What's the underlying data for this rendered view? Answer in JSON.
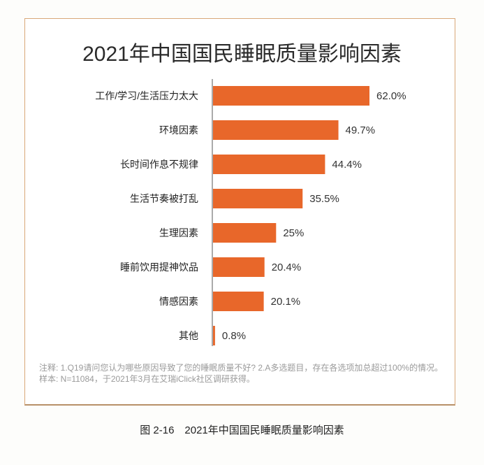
{
  "chart_data": {
    "type": "bar",
    "orientation": "horizontal",
    "title": "2021年中国国民睡眠质量影响因素",
    "categories": [
      "工作/学习/生活压力太大",
      "环境因素",
      "长时间作息不规律",
      "生活节奏被打乱",
      "生理因素",
      "睡前饮用提神饮品",
      "情感因素",
      "其他"
    ],
    "values": [
      62.0,
      49.7,
      44.4,
      35.5,
      25,
      20.4,
      20.1,
      0.8
    ],
    "value_labels": [
      "62.0%",
      "49.7%",
      "44.4%",
      "35.5%",
      "25%",
      "20.4%",
      "20.1%",
      "0.8%"
    ],
    "unit": "%",
    "bar_color": "#e8672a",
    "grid": false
  },
  "notes": {
    "line1": "注释: 1.Q19请问您认为哪些原因导致了您的睡眠质量不好? 2.A多选题目，存在各选项加总超过100%的情况。",
    "line2": "样本: N=11084，于2021年3月在艾瑞iClick社区调研获得。"
  },
  "caption": "图 2-16　2021年中国国民睡眠质量影响因素"
}
